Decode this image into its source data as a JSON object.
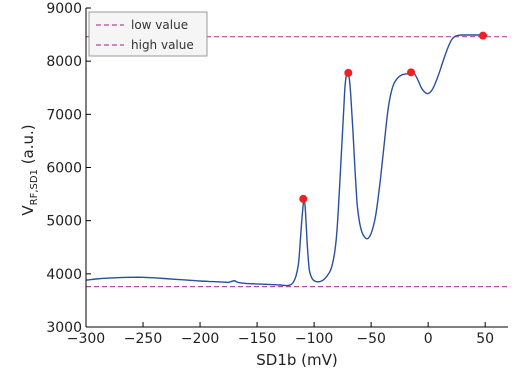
{
  "chart_data": {
    "type": "line",
    "xlabel": "SD1b (mV)",
    "ylabel": "V",
    "ylabel_subscript": "RF,SD1",
    "ylabel_unit": " (a.u.)",
    "xlim": [
      -300,
      70
    ],
    "ylim": [
      3000,
      9000
    ],
    "xticks": [
      -300,
      -250,
      -200,
      -150,
      -100,
      -50,
      0,
      50
    ],
    "xtick_labels": [
      "−300",
      "−250",
      "−200",
      "−150",
      "−100",
      "−50",
      "0",
      "50"
    ],
    "yticks": [
      3000,
      4000,
      5000,
      6000,
      7000,
      8000,
      9000
    ],
    "ytick_labels": [
      "3000",
      "4000",
      "5000",
      "6000",
      "7000",
      "8000",
      "9000"
    ],
    "grid": false,
    "legend_position": "top-left",
    "series": [
      {
        "color": "#2a4f9e",
        "x": [
          -300,
          -290,
          -280,
          -270,
          -260,
          -250,
          -240,
          -230,
          -220,
          -210,
          -200,
          -190,
          -180,
          -175,
          -172,
          -170,
          -168,
          -165,
          -160,
          -150,
          -140,
          -130,
          -125,
          -122,
          -120,
          -118,
          -116,
          -114,
          -113,
          -112,
          -111,
          -110,
          -109,
          -108,
          -107,
          -106,
          -105,
          -104,
          -102,
          -100,
          -97,
          -94,
          -91,
          -88,
          -85,
          -82,
          -80,
          -78,
          -76,
          -74,
          -73,
          -72,
          -71,
          -70,
          -69,
          -68,
          -67,
          -66,
          -65,
          -64,
          -63,
          -62,
          -60,
          -58,
          -56,
          -54,
          -52,
          -50,
          -48,
          -46,
          -44,
          -42,
          -40,
          -38,
          -36,
          -34,
          -32,
          -30,
          -28,
          -26,
          -24,
          -22,
          -20,
          -18,
          -16,
          -14,
          -12,
          -10,
          -8,
          -6,
          -4,
          -2,
          0,
          2,
          4,
          6,
          8,
          10,
          12,
          14,
          16,
          18,
          20,
          22,
          24,
          26,
          28,
          30,
          32,
          34,
          36,
          38,
          40,
          42,
          44,
          46,
          48,
          50,
          52
        ],
        "y": [
          3880,
          3905,
          3920,
          3930,
          3935,
          3935,
          3925,
          3910,
          3895,
          3880,
          3865,
          3855,
          3845,
          3840,
          3860,
          3870,
          3850,
          3830,
          3820,
          3810,
          3800,
          3790,
          3780,
          3785,
          3800,
          3850,
          3950,
          4150,
          4350,
          4650,
          4950,
          5200,
          5390,
          5300,
          4950,
          4550,
          4250,
          4050,
          3920,
          3870,
          3850,
          3860,
          3900,
          3980,
          4100,
          4400,
          4800,
          5500,
          6300,
          7100,
          7500,
          7700,
          7780,
          7760,
          7650,
          7400,
          7050,
          6700,
          6300,
          5900,
          5550,
          5250,
          4950,
          4780,
          4700,
          4660,
          4680,
          4760,
          4900,
          5100,
          5400,
          5750,
          6150,
          6550,
          6950,
          7250,
          7450,
          7580,
          7650,
          7700,
          7730,
          7750,
          7760,
          7760,
          7780,
          7790,
          7760,
          7690,
          7600,
          7500,
          7440,
          7400,
          7390,
          7420,
          7480,
          7570,
          7680,
          7800,
          7930,
          8060,
          8180,
          8290,
          8380,
          8440,
          8470,
          8485,
          8490,
          8492,
          8492,
          8492,
          8492,
          8492,
          8492,
          8492,
          8492,
          8492,
          8492,
          8492,
          8492
        ]
      }
    ],
    "markers": {
      "color": "#ee2222",
      "points": [
        [
          -109.5,
          5410
        ],
        [
          -70,
          7780
        ],
        [
          -15,
          7790
        ],
        [
          48,
          8480
        ]
      ]
    },
    "hlines": [
      {
        "name": "low value",
        "y": 3760,
        "color": "#b04ca0"
      },
      {
        "name": "high value",
        "y": 8460,
        "color": "#b04ca0"
      }
    ]
  }
}
